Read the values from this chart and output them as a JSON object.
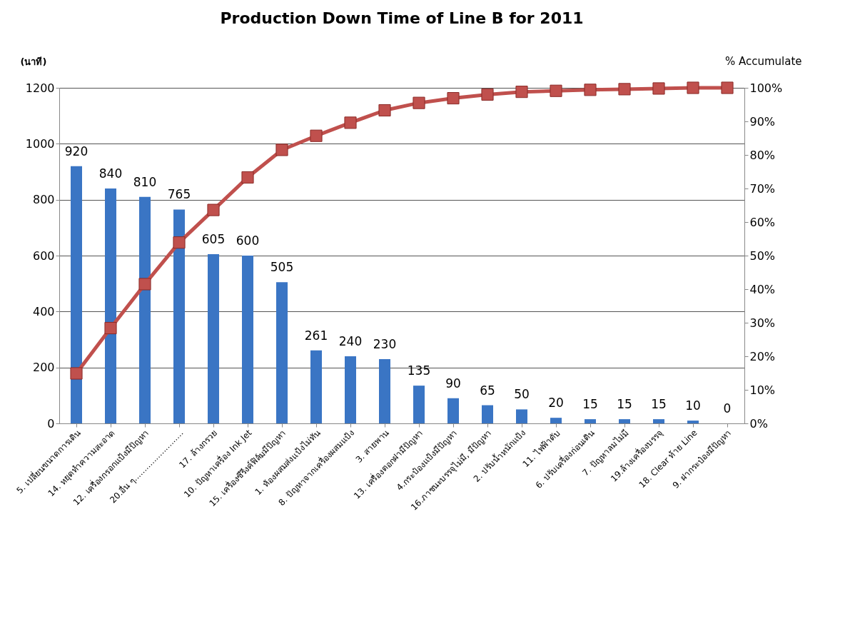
{
  "chart_data": {
    "type": "bar",
    "title": "Production Down Time of Line B for 2011",
    "ylabel": "(นาที)",
    "y2label": "% Accumulate",
    "categories": [
      "5. เปลี่ยนขนาดการเดิน",
      "14. หยุดทำความสะอาด",
      "12. เครื่องกรอกแป้งมีปัญหา",
      "20.อื่น ๆ.........................",
      "17. ล้างกรวย",
      "10. ปัญหาเครื่อง Ink Jet",
      "15. เครื่องซีรีงค์ฟิล์มมีปัญหา",
      "1. ห้องผสมส่งแป้งไม่ทัน",
      "8. ปัญหาจากเครื่องผสมแป้ง",
      "3. สายพาน",
      "13. เครื่องตอกฝามีปัญหา",
      "4.กระป๋องแป้งมีปัญหา",
      "16.ภาชนะบรรจุไม่มี, มีปัญหา",
      "2. ปรับน้ำหนักแป้ง",
      "11. ไฟฟ้าดับ",
      "6. ปรับเครื่องก่อนเดิน",
      "7. ปัญหาลมไม่มี",
      "19.ล้างเครื่องบรรจุ",
      "18. Clear ท้าย Line",
      "9. ฝากระป๋องมีปัญหา"
    ],
    "series": [
      {
        "color": "#3a75c4",
        "values": [
          920,
          840,
          810,
          765,
          605,
          600,
          505,
          261,
          240,
          230,
          135,
          90,
          65,
          50,
          20,
          15,
          15,
          15,
          10,
          0
        ],
        "value_labels": [
          "920",
          "840",
          "810",
          "765",
          "605",
          "600",
          "505",
          "261",
          "240",
          "230",
          "135",
          "90",
          "65",
          "50",
          "20",
          "15",
          "15",
          "15",
          "10",
          "0"
        ]
      },
      {
        "type": "line",
        "axis": "y2",
        "color": "#c0504d",
        "marker": "square",
        "values": [
          14.9,
          28.4,
          41.5,
          53.9,
          63.6,
          73.3,
          81.5,
          85.7,
          89.6,
          93.3,
          95.5,
          96.9,
          98.0,
          98.8,
          99.1,
          99.4,
          99.6,
          99.8,
          100,
          100
        ]
      }
    ],
    "ylim": [
      0,
      1200
    ],
    "yticks": [
      0,
      200,
      400,
      600,
      800,
      1000,
      1200
    ],
    "y2lim": [
      0,
      100
    ],
    "y2ticks": [
      {
        "value": 0,
        "label": "0%"
      },
      {
        "value": 10,
        "label": "10%"
      },
      {
        "value": 20,
        "label": "20%"
      },
      {
        "value": 30,
        "label": "30%"
      },
      {
        "value": 40,
        "label": "40%"
      },
      {
        "value": 50,
        "label": "50%"
      },
      {
        "value": 60,
        "label": "60%"
      },
      {
        "value": 70,
        "label": "70%"
      },
      {
        "value": 80,
        "label": "80%"
      },
      {
        "value": 90,
        "label": "90%"
      },
      {
        "value": 100,
        "label": "100%"
      }
    ],
    "grid": "y"
  }
}
